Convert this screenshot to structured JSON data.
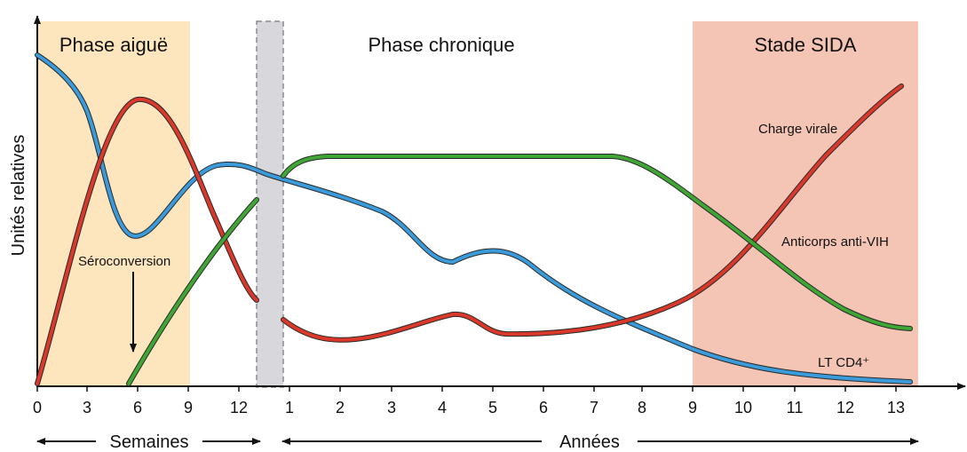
{
  "y_label": "Unités relatives",
  "phases": {
    "acute": "Phase aiguë",
    "chronic": "Phase chronique",
    "aids": "Stade SIDA"
  },
  "curve_labels": {
    "viral_load": "Charge virale",
    "antibodies": "Anticorps anti-VIH",
    "cd4": "LT CD4⁺"
  },
  "annotation": "Séroconversion",
  "units": {
    "weeks": "Semaines",
    "years": "Années"
  },
  "x_ticks_weeks": [
    "0",
    "3",
    "6",
    "9",
    "12"
  ],
  "x_ticks_years": [
    "1",
    "2",
    "3",
    "4",
    "5",
    "6",
    "7",
    "8",
    "9",
    "10",
    "11",
    "12",
    "13"
  ],
  "colors": {
    "acute_bg": "#fde5be",
    "aids_bg": "#f4c4b5",
    "gap_bg": "#d8d8dc",
    "cd4": "#3b9ad9",
    "viral_load": "#d9382b",
    "antibodies": "#3fa535"
  }
}
